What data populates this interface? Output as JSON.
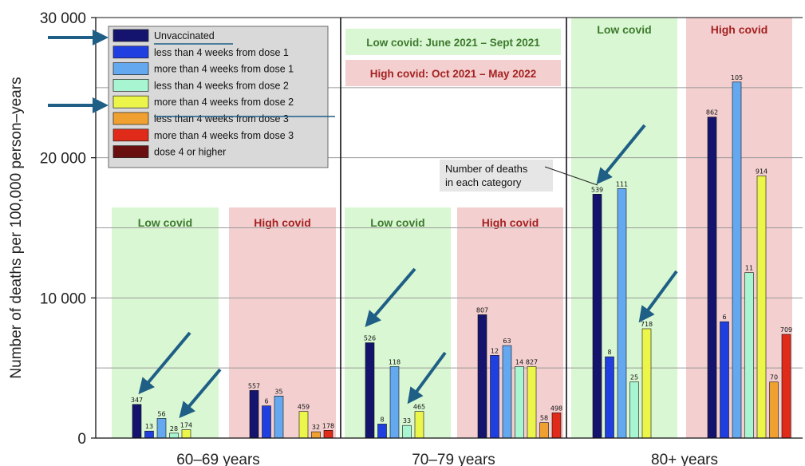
{
  "chart_data": {
    "type": "bar",
    "title": "",
    "ylabel": "Number of deaths per 100,000 person–years",
    "xlabel": "",
    "ylim": [
      0,
      30000
    ],
    "yticks": [
      0,
      10000,
      20000,
      30000
    ],
    "ytick_labels": [
      "0",
      "10 000",
      "20 000",
      "30 000"
    ],
    "minor_gridlines": [
      5000,
      15000,
      25000
    ],
    "grid": true,
    "legend_position": "top-left",
    "colors": {
      "low_covid_band": "#d9f7d2",
      "high_covid_band": "#f3cfcf",
      "low_covid_text": "#3d7a2e",
      "high_covid_text": "#a52222",
      "arrow": "#1f5f86"
    },
    "period_notes": {
      "low": "Low covid: June 2021 – Sept 2021",
      "high": "High covid: Oct 2021 – May 2022"
    },
    "annotation": "Number of deaths in each category",
    "annotation_lines": [
      "Number of deaths",
      "in each category"
    ],
    "series": [
      {
        "name": "Unvaccinated",
        "color": "#14146e"
      },
      {
        "name": "less than 4 weeks from dose 1",
        "color": "#1f3fe0"
      },
      {
        "name": "more than 4 weeks from dose 1",
        "color": "#64a8f0"
      },
      {
        "name": "less than 4 weeks from dose 2",
        "color": "#a8f5d2"
      },
      {
        "name": "more than 4 weeks from dose 2",
        "color": "#ecf54a"
      },
      {
        "name": "less than 4 weeks from dose 3",
        "color": "#f0a030"
      },
      {
        "name": "more than 4 weeks from dose 3",
        "color": "#e02a1a"
      },
      {
        "name": "dose 4 or higher",
        "color": "#6a0f0f"
      }
    ],
    "groups": [
      {
        "label": "60–69 years",
        "periods": [
          {
            "period": "Low covid",
            "bars": [
              {
                "s": 0,
                "value": 2400,
                "deaths": "347"
              },
              {
                "s": 1,
                "value": 500,
                "deaths": "13"
              },
              {
                "s": 2,
                "value": 1400,
                "deaths": "56"
              },
              {
                "s": 3,
                "value": 350,
                "deaths": "28"
              },
              {
                "s": 4,
                "value": 600,
                "deaths": "174"
              }
            ]
          },
          {
            "period": "High covid",
            "bars": [
              {
                "s": 0,
                "value": 3400,
                "deaths": "557"
              },
              {
                "s": 1,
                "value": 2300,
                "deaths": "6"
              },
              {
                "s": 2,
                "value": 3000,
                "deaths": "35"
              },
              {
                "s": 4,
                "value": 1900,
                "deaths": "459"
              },
              {
                "s": 5,
                "value": 450,
                "deaths": "32"
              },
              {
                "s": 6,
                "value": 550,
                "deaths": "178"
              }
            ]
          }
        ]
      },
      {
        "label": "70–79 years",
        "periods": [
          {
            "period": "Low covid",
            "bars": [
              {
                "s": 0,
                "value": 6800,
                "deaths": "526"
              },
              {
                "s": 1,
                "value": 1000,
                "deaths": "8"
              },
              {
                "s": 2,
                "value": 5100,
                "deaths": "118"
              },
              {
                "s": 3,
                "value": 900,
                "deaths": "33"
              },
              {
                "s": 4,
                "value": 1900,
                "deaths": "465"
              }
            ]
          },
          {
            "period": "High covid",
            "bars": [
              {
                "s": 0,
                "value": 8800,
                "deaths": "807"
              },
              {
                "s": 1,
                "value": 5900,
                "deaths": "12"
              },
              {
                "s": 2,
                "value": 6600,
                "deaths": "63"
              },
              {
                "s": 3,
                "value": 5100,
                "deaths": "14"
              },
              {
                "s": 4,
                "value": 5100,
                "deaths": "827"
              },
              {
                "s": 5,
                "value": 1100,
                "deaths": "58"
              },
              {
                "s": 6,
                "value": 1800,
                "deaths": "498"
              }
            ]
          }
        ]
      },
      {
        "label": "80+ years",
        "periods": [
          {
            "period": "Low covid",
            "bars": [
              {
                "s": 0,
                "value": 17400,
                "deaths": "539"
              },
              {
                "s": 1,
                "value": 5800,
                "deaths": "8"
              },
              {
                "s": 2,
                "value": 17800,
                "deaths": "111"
              },
              {
                "s": 3,
                "value": 4000,
                "deaths": "25"
              },
              {
                "s": 4,
                "value": 7800,
                "deaths": "718"
              }
            ]
          },
          {
            "period": "High covid",
            "bars": [
              {
                "s": 0,
                "value": 22900,
                "deaths": "862"
              },
              {
                "s": 1,
                "value": 8300,
                "deaths": "6"
              },
              {
                "s": 2,
                "value": 25400,
                "deaths": "105"
              },
              {
                "s": 3,
                "value": 11800,
                "deaths": "11"
              },
              {
                "s": 4,
                "value": 18700,
                "deaths": "914"
              },
              {
                "s": 5,
                "value": 4000,
                "deaths": "70"
              },
              {
                "s": 6,
                "value": 7400,
                "deaths": "709"
              }
            ]
          }
        ]
      }
    ]
  }
}
